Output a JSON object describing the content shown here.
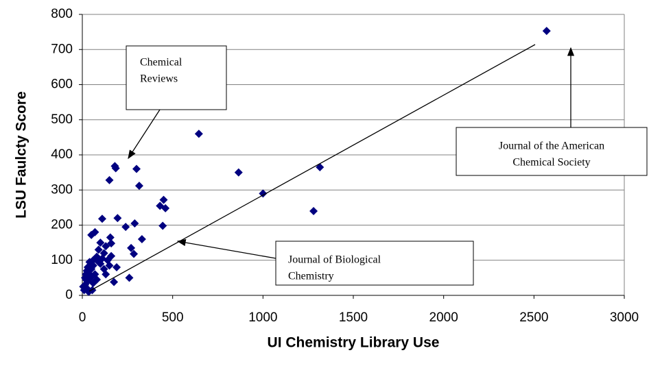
{
  "chart_data": {
    "type": "scatter",
    "x_label": "UI Chemistry Library Use",
    "y_label": "LSU Faulcty Score",
    "xlim": [
      0,
      3000
    ],
    "xticks": [
      0,
      500,
      1000,
      1500,
      2000,
      2500,
      3000
    ],
    "ylim": [
      0,
      800
    ],
    "yticks": [
      0,
      100,
      200,
      300,
      400,
      500,
      600,
      700,
      800
    ],
    "grid": true,
    "color": "#000080",
    "x": [
      2570,
      645,
      865,
      1000,
      1280,
      1315,
      180,
      185,
      150,
      300,
      315,
      450,
      430,
      460,
      445,
      290,
      195,
      240,
      330,
      110,
      270,
      285,
      190,
      260,
      175,
      155,
      160,
      130,
      160,
      70,
      50,
      100,
      90,
      120,
      140,
      80,
      60,
      40,
      30,
      50,
      20,
      70,
      45,
      30,
      15,
      25,
      10,
      35,
      55,
      60,
      80,
      100,
      120,
      150,
      20,
      5,
      40,
      60,
      90,
      110,
      130,
      25,
      15
    ],
    "values": [
      753,
      460,
      350,
      290,
      240,
      365,
      368,
      362,
      328,
      360,
      312,
      272,
      255,
      248,
      198,
      205,
      220,
      195,
      160,
      218,
      135,
      118,
      80,
      50,
      38,
      165,
      148,
      140,
      112,
      180,
      172,
      150,
      130,
      120,
      100,
      110,
      100,
      95,
      80,
      75,
      60,
      60,
      50,
      40,
      30,
      20,
      15,
      10,
      15,
      35,
      45,
      90,
      75,
      85,
      45,
      25,
      60,
      85,
      95,
      105,
      60,
      70,
      50
    ],
    "annotations": [
      {
        "lines": [
          "Chemical",
          "Reviews"
        ]
      },
      {
        "lines": [
          "Journal of the American",
          "Chemical Society"
        ]
      },
      {
        "lines": [
          "Journal of Biological",
          "Chemistry"
        ]
      }
    ]
  }
}
